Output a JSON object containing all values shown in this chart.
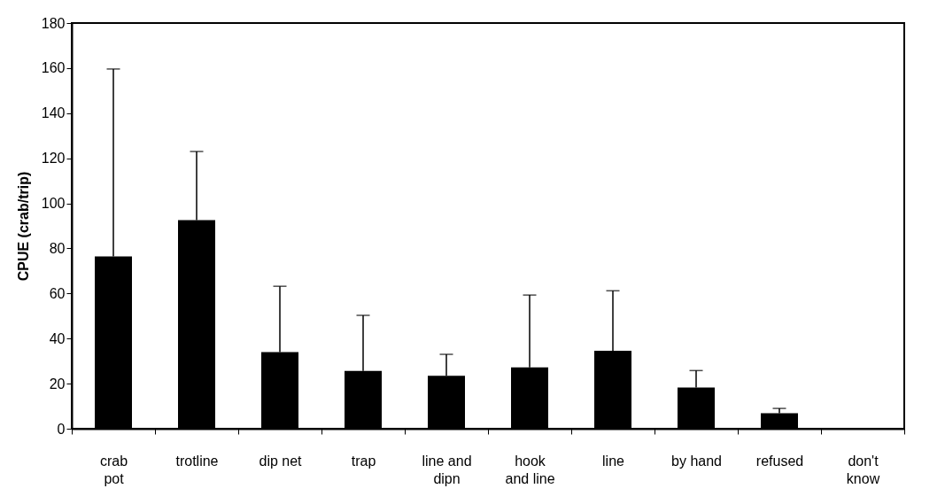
{
  "chart_data": {
    "type": "bar",
    "ylabel": "CPUE (crab/trip)",
    "categories": [
      "crab\npot",
      "trotline",
      "dip net",
      "trap",
      "line and\ndipn",
      "hook\nand line",
      "line",
      "by hand",
      "refused",
      "don't\nknow"
    ],
    "values": [
      76.4,
      92.6,
      34,
      25.6,
      23.5,
      27.2,
      34.6,
      18.3,
      6.9,
      0
    ],
    "errors": [
      [
        76.4,
        159.6
      ],
      [
        92.6,
        123
      ],
      [
        34,
        63.2
      ],
      [
        25.6,
        50.3
      ],
      [
        23.5,
        33
      ],
      [
        27.2,
        59.3
      ],
      [
        34.6,
        61.2
      ],
      [
        18.3,
        25.8
      ],
      [
        6.9,
        9.0
      ],
      null
    ],
    "color": "#000000",
    "ylim": [
      0,
      180
    ],
    "yticks": [
      0,
      20,
      40,
      60,
      80,
      100,
      120,
      140,
      160,
      180
    ],
    "grid": false
  }
}
